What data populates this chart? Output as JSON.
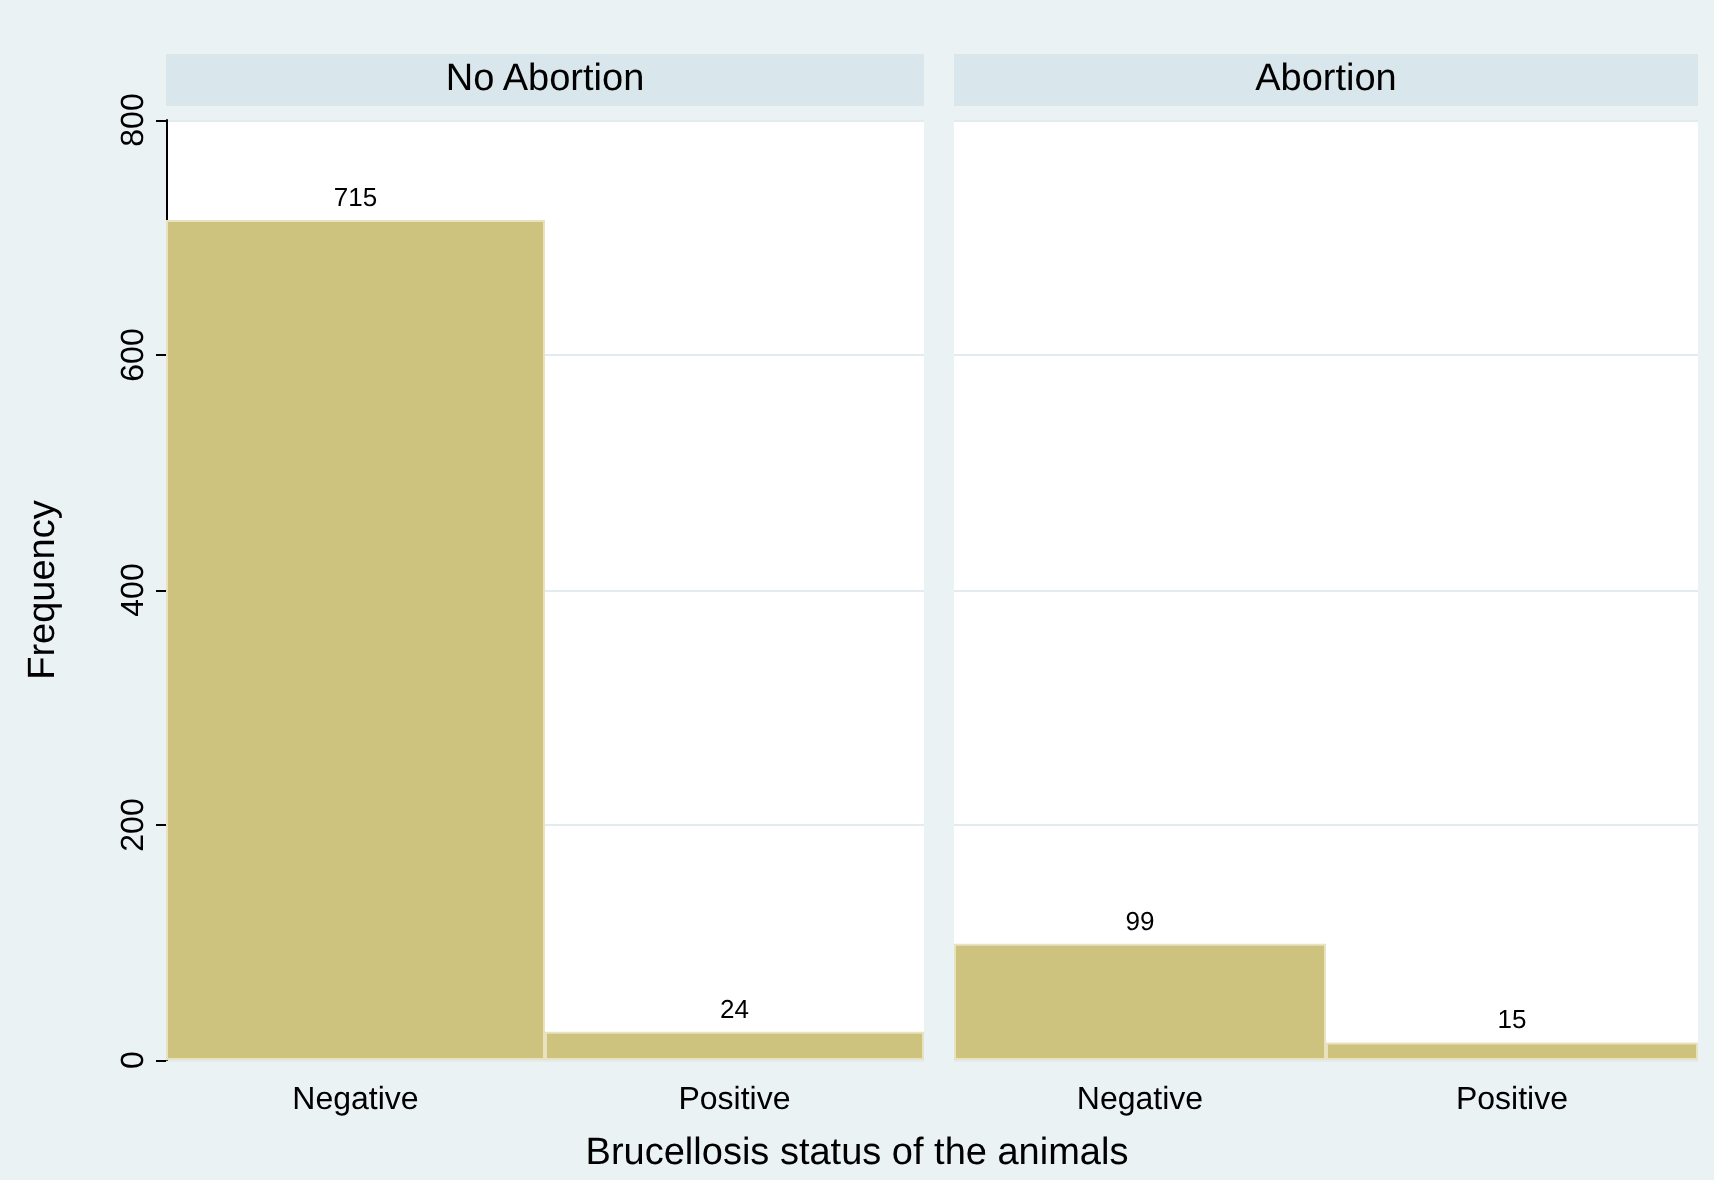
{
  "chart_data": [
    {
      "type": "bar",
      "title": "No Abortion",
      "ylabel": "Frequency",
      "xlabel": "Brucellosis status of the animals",
      "categories": [
        "Negative",
        "Positive"
      ],
      "values": [
        715,
        24
      ],
      "color": "#cdc37f",
      "ylim": [
        0,
        800
      ],
      "yticks": [
        0,
        200,
        400,
        600,
        800
      ],
      "grid": "y",
      "data_labels": true
    },
    {
      "type": "bar",
      "title": "Abortion",
      "categories": [
        "Negative",
        "Positive"
      ],
      "values": [
        99,
        15
      ],
      "color": "#cdc37f",
      "ylim": [
        0,
        800
      ],
      "yticks": [
        0,
        200,
        400,
        600,
        800
      ],
      "grid": "y",
      "data_labels": true,
      "tick_labels": "x"
    }
  ]
}
